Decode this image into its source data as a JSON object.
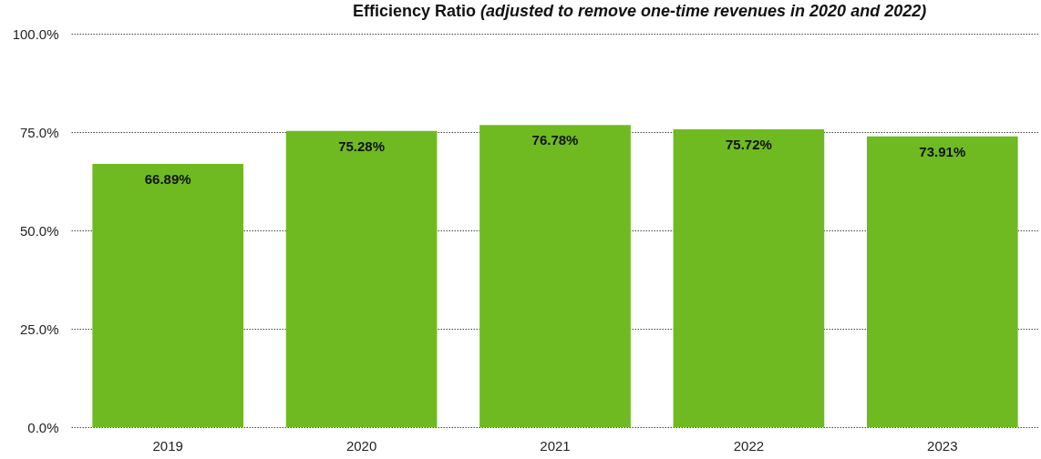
{
  "chart_data": {
    "type": "bar",
    "title": "Efficiency Ratio",
    "subtitle": "(adjusted to remove one-time revenues in 2020 and 2022)",
    "categories": [
      "2019",
      "2020",
      "2021",
      "2022",
      "2023"
    ],
    "values": [
      66.89,
      75.28,
      76.78,
      75.72,
      73.91
    ],
    "value_labels": [
      "66.89%",
      "75.28%",
      "76.78%",
      "75.72%",
      "73.91%"
    ],
    "color": "#6fba21",
    "ylim": [
      0,
      100
    ],
    "yticks": [
      {
        "value": 0,
        "label": "0.0%"
      },
      {
        "value": 25,
        "label": "25.0%"
      },
      {
        "value": 50,
        "label": "50.0%"
      },
      {
        "value": 75,
        "label": "75.0%"
      },
      {
        "value": 100,
        "label": "100.0%"
      }
    ],
    "grid": "y"
  }
}
